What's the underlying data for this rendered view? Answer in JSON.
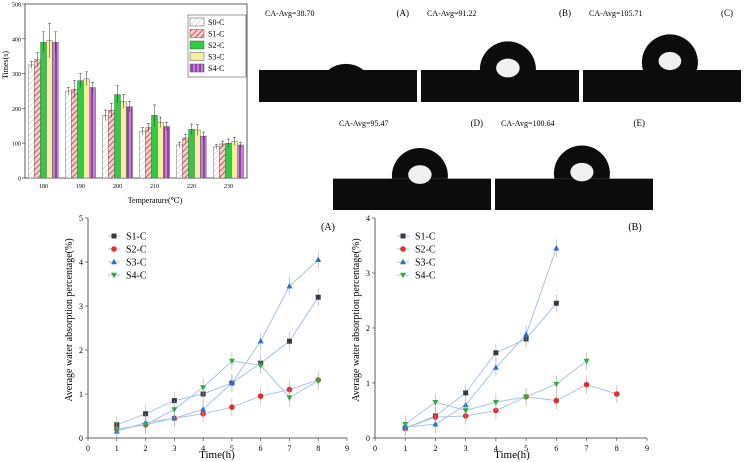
{
  "colors": {
    "S0-C": "#ffffff",
    "S1-C": "#d9534f",
    "S2-C": "#2ecc40",
    "S3-C": "#f5f0a0",
    "S4-C": "#9b3fb0",
    "line_S1-C": "#3a3a3a",
    "line_S2-C": "#e03030",
    "line_S3-C": "#2a6fd6",
    "line_S4-C": "#2cae3c"
  },
  "contact_angles": [
    {
      "letter": "(A)",
      "label": "CA-Avg=38.70",
      "angle": 38.7
    },
    {
      "letter": "(B)",
      "label": "CA-Avg=91.22",
      "angle": 91.22
    },
    {
      "letter": "(C)",
      "label": "CA-Avg=105.71",
      "angle": 105.71
    },
    {
      "letter": "(D)",
      "label": "CA-Avg=95.47",
      "angle": 95.47
    },
    {
      "letter": "(E)",
      "label": "CA-Avg=100.64",
      "angle": 100.64
    }
  ],
  "chart_data": [
    {
      "type": "bar",
      "xlabel": "Temperature(℃)",
      "ylabel": "Times(s)",
      "ylim": [
        0,
        500
      ],
      "yticks": [
        0,
        100,
        200,
        300,
        400,
        500
      ],
      "categories": [
        "180",
        "190",
        "200",
        "210",
        "220",
        "230"
      ],
      "legend_position": "top-right",
      "series": [
        {
          "name": "S0-C",
          "values": [
            325,
            250,
            180,
            135,
            95,
            90
          ]
        },
        {
          "name": "S1-C",
          "values": [
            340,
            255,
            195,
            145,
            115,
            98
          ]
        },
        {
          "name": "S2-C",
          "values": [
            390,
            280,
            240,
            180,
            140,
            100
          ]
        },
        {
          "name": "S3-C",
          "values": [
            395,
            285,
            220,
            160,
            138,
            105
          ]
        },
        {
          "name": "S4-C",
          "values": [
            390,
            260,
            205,
            148,
            120,
            95
          ]
        }
      ],
      "errors": [
        [
          10,
          10,
          15,
          10,
          8,
          6
        ],
        [
          20,
          25,
          20,
          12,
          10,
          8
        ],
        [
          30,
          20,
          25,
          30,
          15,
          12
        ],
        [
          50,
          20,
          20,
          15,
          15,
          12
        ],
        [
          30,
          15,
          15,
          12,
          12,
          8
        ]
      ]
    },
    {
      "type": "line",
      "panel": "(A)",
      "xlabel": "Time(h)",
      "ylabel": "Average water absorption percentage(%)",
      "xlim": [
        0,
        9
      ],
      "ylim": [
        0,
        5
      ],
      "xticks": [
        0,
        1,
        2,
        3,
        4,
        5,
        6,
        7,
        8,
        9
      ],
      "yticks": [
        0,
        1,
        2,
        3,
        4,
        5
      ],
      "legend_position": "top-left",
      "series": [
        {
          "name": "S1-C",
          "marker": "square",
          "x": [
            1,
            2,
            3,
            4,
            5,
            6,
            7,
            8
          ],
          "y": [
            0.3,
            0.55,
            0.85,
            1.0,
            1.25,
            1.7,
            2.2,
            3.2
          ]
        },
        {
          "name": "S2-C",
          "marker": "circle",
          "x": [
            1,
            2,
            3,
            4,
            5,
            6,
            7,
            8
          ],
          "y": [
            0.2,
            0.3,
            0.45,
            0.55,
            0.7,
            0.95,
            1.1,
            1.32
          ]
        },
        {
          "name": "S3-C",
          "marker": "triangle-up",
          "x": [
            1,
            2,
            3,
            4,
            5,
            6,
            7,
            8
          ],
          "y": [
            0.15,
            0.35,
            0.45,
            0.65,
            1.25,
            2.2,
            3.45,
            4.05
          ]
        },
        {
          "name": "S4-C",
          "marker": "triangle-down",
          "x": [
            1,
            2,
            3,
            4,
            5,
            6,
            7,
            8
          ],
          "y": [
            0.2,
            0.3,
            0.65,
            1.15,
            1.75,
            1.65,
            0.92,
            1.3
          ]
        }
      ]
    },
    {
      "type": "line",
      "panel": "(B)",
      "xlabel": "Time(h)",
      "ylabel": "Average water absorption percentage(%)",
      "xlim": [
        0,
        9
      ],
      "ylim": [
        0,
        4
      ],
      "xticks": [
        0,
        1,
        2,
        3,
        4,
        5,
        6,
        7,
        8,
        9
      ],
      "yticks": [
        0,
        1,
        2,
        3,
        4
      ],
      "legend_position": "top-left",
      "series": [
        {
          "name": "S1-C",
          "marker": "square",
          "x": [
            1,
            2,
            3,
            4,
            5,
            6
          ],
          "y": [
            0.18,
            0.4,
            0.82,
            1.55,
            1.8,
            2.45
          ]
        },
        {
          "name": "S2-C",
          "marker": "circle",
          "x": [
            1,
            2,
            3,
            4,
            5,
            6,
            7,
            8
          ],
          "y": [
            0.18,
            0.38,
            0.4,
            0.5,
            0.75,
            0.68,
            0.97,
            0.8
          ]
        },
        {
          "name": "S3-C",
          "marker": "triangle-up",
          "x": [
            1,
            2,
            3,
            4,
            5,
            6
          ],
          "y": [
            0.2,
            0.25,
            0.6,
            1.28,
            1.88,
            3.45
          ]
        },
        {
          "name": "S4-C",
          "marker": "triangle-down",
          "x": [
            1,
            2,
            3,
            4,
            5,
            6,
            7
          ],
          "y": [
            0.25,
            0.65,
            0.5,
            0.65,
            0.75,
            0.98,
            1.4
          ]
        }
      ]
    }
  ]
}
